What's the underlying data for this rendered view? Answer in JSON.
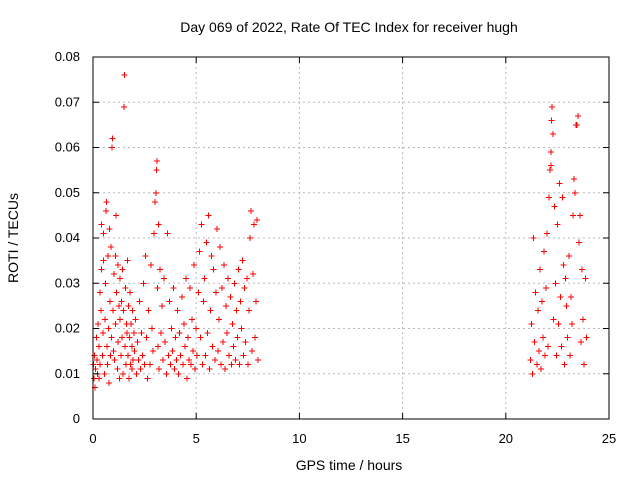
{
  "chart_data": {
    "type": "scatter",
    "title": "Day 069 of 2022, Rate Of TEC Index for receiver hugh",
    "xlabel": "GPS time / hours",
    "ylabel": "ROTI / TECUs",
    "xlim": [
      0,
      25
    ],
    "ylim": [
      0,
      0.08
    ],
    "xticks": [
      0,
      5,
      10,
      15,
      20,
      25
    ],
    "yticks": [
      0,
      0.01,
      0.02,
      0.03,
      0.04,
      0.05,
      0.06,
      0.07,
      0.08
    ],
    "grid": true,
    "legend": "none",
    "marker": "plus",
    "color": "#ff0000",
    "series": [
      {
        "values": [
          [
            0.02,
            0.012
          ],
          [
            0.05,
            0.009
          ],
          [
            0.08,
            0.014
          ],
          [
            0.1,
            0.007
          ],
          [
            0.13,
            0.011
          ],
          [
            0.16,
            0.018
          ],
          [
            0.2,
            0.013
          ],
          [
            0.22,
            0.01
          ],
          [
            0.25,
            0.021
          ],
          [
            0.28,
            0.009
          ],
          [
            0.3,
            0.016
          ],
          [
            0.33,
            0.028
          ],
          [
            0.35,
            0.012
          ],
          [
            0.38,
            0.024
          ],
          [
            0.4,
            0.033
          ],
          [
            0.42,
            0.043
          ],
          [
            0.45,
            0.014
          ],
          [
            0.48,
            0.019
          ],
          [
            0.5,
            0.035
          ],
          [
            0.52,
            0.041
          ],
          [
            0.55,
            0.01
          ],
          [
            0.58,
            0.022
          ],
          [
            0.6,
            0.03
          ],
          [
            0.62,
            0.046
          ],
          [
            0.65,
            0.048
          ],
          [
            0.68,
            0.016
          ],
          [
            0.7,
            0.012
          ],
          [
            0.72,
            0.036
          ],
          [
            0.75,
            0.02
          ],
          [
            0.78,
            0.008
          ],
          [
            0.8,
            0.042
          ],
          [
            0.82,
            0.026
          ],
          [
            0.85,
            0.014
          ],
          [
            0.88,
            0.038
          ],
          [
            0.9,
            0.018
          ],
          [
            0.92,
            0.06
          ],
          [
            0.95,
            0.062
          ],
          [
            0.98,
            0.024
          ],
          [
            1.0,
            0.015
          ],
          [
            1.02,
            0.032
          ],
          [
            1.05,
            0.013
          ],
          [
            1.08,
            0.036
          ],
          [
            1.1,
            0.021
          ],
          [
            1.12,
            0.045
          ],
          [
            1.15,
            0.028
          ],
          [
            1.18,
            0.011
          ],
          [
            1.2,
            0.034
          ],
          [
            1.22,
            0.017
          ],
          [
            1.25,
            0.025
          ],
          [
            1.28,
            0.009
          ],
          [
            1.3,
            0.022
          ],
          [
            1.32,
            0.031
          ],
          [
            1.35,
            0.014
          ],
          [
            1.38,
            0.026
          ],
          [
            1.4,
            0.018
          ],
          [
            1.42,
            0.033
          ],
          [
            1.45,
            0.01
          ],
          [
            1.48,
            0.024
          ],
          [
            1.5,
            0.069
          ],
          [
            1.52,
            0.076
          ],
          [
            1.55,
            0.016
          ],
          [
            1.58,
            0.029
          ],
          [
            1.6,
            0.012
          ],
          [
            1.62,
            0.021
          ],
          [
            1.65,
            0.019
          ],
          [
            1.68,
            0.035
          ],
          [
            1.7,
            0.014
          ],
          [
            1.72,
            0.025
          ],
          [
            1.75,
            0.009
          ],
          [
            1.78,
            0.018
          ],
          [
            1.8,
            0.028
          ],
          [
            1.82,
            0.012
          ],
          [
            1.85,
            0.021
          ],
          [
            1.88,
            0.016
          ],
          [
            1.9,
            0.011
          ],
          [
            1.92,
            0.024
          ],
          [
            1.95,
            0.013
          ],
          [
            1.98,
            0.019
          ],
          [
            2.0,
            0.015
          ],
          [
            2.05,
            0.022
          ],
          [
            2.1,
            0.01
          ],
          [
            2.15,
            0.017
          ],
          [
            2.2,
            0.013
          ],
          [
            2.25,
            0.026
          ],
          [
            2.3,
            0.011
          ],
          [
            2.35,
            0.019
          ],
          [
            2.4,
            0.014
          ],
          [
            2.45,
            0.03
          ],
          [
            2.5,
            0.012
          ],
          [
            2.55,
            0.036
          ],
          [
            2.6,
            0.018
          ],
          [
            2.65,
            0.009
          ],
          [
            2.7,
            0.024
          ],
          [
            2.75,
            0.012
          ],
          [
            2.8,
            0.034
          ],
          [
            2.85,
            0.02
          ],
          [
            2.9,
            0.015
          ],
          [
            2.95,
            0.041
          ],
          [
            3.0,
            0.048
          ],
          [
            3.05,
            0.05
          ],
          [
            3.08,
            0.055
          ],
          [
            3.1,
            0.057
          ],
          [
            3.12,
            0.029
          ],
          [
            3.15,
            0.016
          ],
          [
            3.18,
            0.043
          ],
          [
            3.2,
            0.011
          ],
          [
            3.25,
            0.033
          ],
          [
            3.3,
            0.019
          ],
          [
            3.35,
            0.025
          ],
          [
            3.4,
            0.013
          ],
          [
            3.45,
            0.031
          ],
          [
            3.5,
            0.017
          ],
          [
            3.55,
            0.01
          ],
          [
            3.6,
            0.041
          ],
          [
            3.65,
            0.014
          ],
          [
            3.7,
            0.026
          ],
          [
            3.75,
            0.012
          ],
          [
            3.8,
            0.02
          ],
          [
            3.85,
            0.015
          ],
          [
            3.9,
            0.029
          ],
          [
            3.95,
            0.011
          ],
          [
            4.0,
            0.018
          ],
          [
            4.05,
            0.013
          ],
          [
            4.1,
            0.024
          ],
          [
            4.15,
            0.01
          ],
          [
            4.2,
            0.019
          ],
          [
            4.25,
            0.014
          ],
          [
            4.3,
            0.027
          ],
          [
            4.35,
            0.012
          ],
          [
            4.4,
            0.021
          ],
          [
            4.45,
            0.016
          ],
          [
            4.5,
            0.031
          ],
          [
            4.55,
            0.009
          ],
          [
            4.6,
            0.018
          ],
          [
            4.65,
            0.013
          ],
          [
            4.7,
            0.029
          ],
          [
            4.75,
            0.012
          ],
          [
            4.8,
            0.022
          ],
          [
            4.85,
            0.015
          ],
          [
            4.9,
            0.034
          ],
          [
            4.95,
            0.011
          ],
          [
            5.0,
            0.02
          ],
          [
            5.05,
            0.014
          ],
          [
            5.1,
            0.028
          ],
          [
            5.15,
            0.037
          ],
          [
            5.2,
            0.018
          ],
          [
            5.25,
            0.043
          ],
          [
            5.3,
            0.012
          ],
          [
            5.35,
            0.026
          ],
          [
            5.4,
            0.031
          ],
          [
            5.45,
            0.014
          ],
          [
            5.5,
            0.039
          ],
          [
            5.55,
            0.019
          ],
          [
            5.6,
            0.045
          ],
          [
            5.65,
            0.011
          ],
          [
            5.7,
            0.024
          ],
          [
            5.75,
            0.036
          ],
          [
            5.8,
            0.016
          ],
          [
            5.85,
            0.033
          ],
          [
            5.9,
            0.013
          ],
          [
            5.95,
            0.028
          ],
          [
            6.0,
            0.042
          ],
          [
            6.05,
            0.015
          ],
          [
            6.1,
            0.022
          ],
          [
            6.15,
            0.038
          ],
          [
            6.2,
            0.012
          ],
          [
            6.25,
            0.029
          ],
          [
            6.3,
            0.017
          ],
          [
            6.35,
            0.034
          ],
          [
            6.4,
            0.011
          ],
          [
            6.45,
            0.025
          ],
          [
            6.5,
            0.019
          ],
          [
            6.55,
            0.031
          ],
          [
            6.6,
            0.014
          ],
          [
            6.65,
            0.027
          ],
          [
            6.7,
            0.012
          ],
          [
            6.75,
            0.021
          ],
          [
            6.8,
            0.016
          ],
          [
            6.85,
            0.03
          ],
          [
            6.9,
            0.013
          ],
          [
            6.95,
            0.024
          ],
          [
            7.0,
            0.018
          ],
          [
            7.05,
            0.033
          ],
          [
            7.1,
            0.012
          ],
          [
            7.15,
            0.026
          ],
          [
            7.2,
            0.02
          ],
          [
            7.25,
            0.035
          ],
          [
            7.3,
            0.014
          ],
          [
            7.35,
            0.029
          ],
          [
            7.4,
            0.017
          ],
          [
            7.45,
            0.031
          ],
          [
            7.5,
            0.012
          ],
          [
            7.55,
            0.024
          ],
          [
            7.6,
            0.04
          ],
          [
            7.65,
            0.046
          ],
          [
            7.7,
            0.015
          ],
          [
            7.75,
            0.032
          ],
          [
            7.8,
            0.043
          ],
          [
            7.85,
            0.018
          ],
          [
            7.9,
            0.026
          ],
          [
            7.95,
            0.044
          ],
          [
            8.0,
            0.013
          ],
          [
            21.2,
            0.013
          ],
          [
            21.25,
            0.021
          ],
          [
            21.3,
            0.01
          ],
          [
            21.35,
            0.04
          ],
          [
            21.4,
            0.017
          ],
          [
            21.45,
            0.028
          ],
          [
            21.5,
            0.012
          ],
          [
            21.55,
            0.024
          ],
          [
            21.6,
            0.015
          ],
          [
            21.65,
            0.033
          ],
          [
            21.7,
            0.011
          ],
          [
            21.75,
            0.026
          ],
          [
            21.8,
            0.018
          ],
          [
            21.85,
            0.037
          ],
          [
            21.9,
            0.014
          ],
          [
            21.95,
            0.029
          ],
          [
            22.0,
            0.041
          ],
          [
            22.05,
            0.016
          ],
          [
            22.1,
            0.049
          ],
          [
            22.15,
            0.055
          ],
          [
            22.18,
            0.056
          ],
          [
            22.2,
            0.059
          ],
          [
            22.22,
            0.066
          ],
          [
            22.25,
            0.069
          ],
          [
            22.28,
            0.063
          ],
          [
            22.3,
            0.022
          ],
          [
            22.35,
            0.047
          ],
          [
            22.4,
            0.03
          ],
          [
            22.45,
            0.014
          ],
          [
            22.5,
            0.043
          ],
          [
            22.55,
            0.021
          ],
          [
            22.6,
            0.052
          ],
          [
            22.65,
            0.027
          ],
          [
            22.7,
            0.016
          ],
          [
            22.75,
            0.049
          ],
          [
            22.8,
            0.034
          ],
          [
            22.85,
            0.012
          ],
          [
            22.9,
            0.031
          ],
          [
            22.95,
            0.025
          ],
          [
            23.0,
            0.018
          ],
          [
            23.05,
            0.036
          ],
          [
            23.1,
            0.014
          ],
          [
            23.15,
            0.027
          ],
          [
            23.2,
            0.021
          ],
          [
            23.25,
            0.045
          ],
          [
            23.3,
            0.053
          ],
          [
            23.35,
            0.05
          ],
          [
            23.4,
            0.065
          ],
          [
            23.45,
            0.065
          ],
          [
            23.5,
            0.067
          ],
          [
            23.55,
            0.039
          ],
          [
            23.6,
            0.045
          ],
          [
            23.65,
            0.017
          ],
          [
            23.7,
            0.033
          ],
          [
            23.75,
            0.022
          ],
          [
            23.8,
            0.012
          ],
          [
            23.85,
            0.031
          ],
          [
            23.9,
            0.018
          ]
        ]
      }
    ]
  }
}
